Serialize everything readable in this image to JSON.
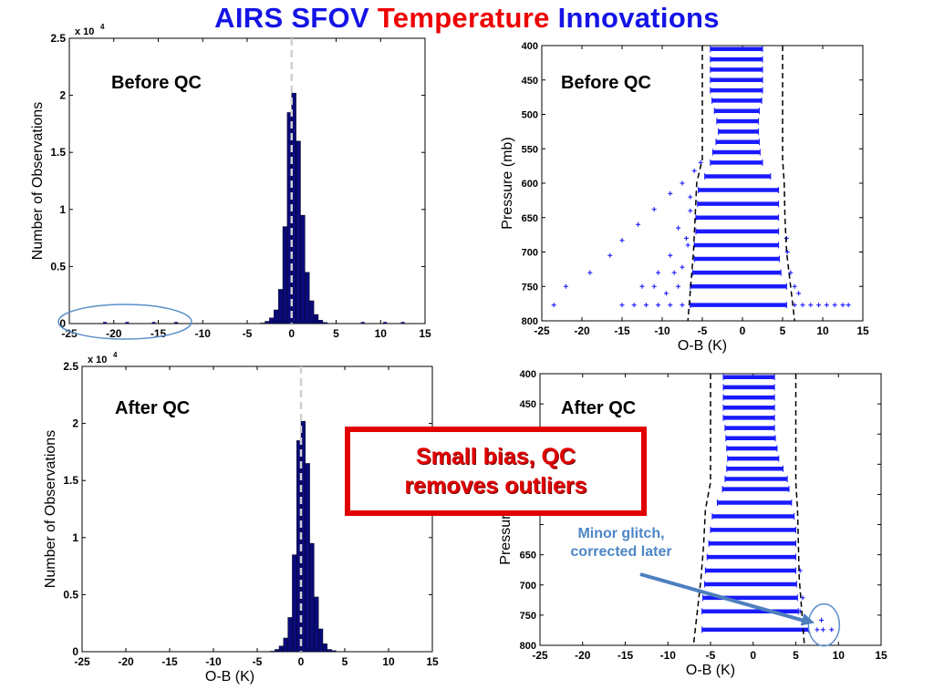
{
  "title": {
    "part1": "AIRS SFOV",
    "part2": "Temperature",
    "part3": "Innovations"
  },
  "colors": {
    "bar_fill": "#0a0a7a",
    "scatter": "#1a1aff",
    "title_blue": "#1414e6",
    "title_red": "#ee0000",
    "callout_red": "#e00000",
    "annotation_blue": "#4d86c6"
  },
  "callout": {
    "line1": "Small bias, QC",
    "line2": "removes outliers"
  },
  "annotation": {
    "line1": "Minor glitch,",
    "line2": "corrected later"
  },
  "chart_data": [
    {
      "type": "bar",
      "panel_label": "Before QC",
      "ylabel": "Number of Observations",
      "xlabel": "",
      "y_multiplier_label": "x 10",
      "y_multiplier_exp": "4",
      "xlim": [
        -25,
        15
      ],
      "ylim": [
        0,
        2.5
      ],
      "xticks": [
        "-25",
        "-20",
        "-15",
        "-10",
        "-5",
        "0",
        "5",
        "10",
        "15"
      ],
      "yticks": [
        "0",
        "0.5",
        "1",
        "1.5",
        "2",
        "2.5"
      ],
      "bin_centers": [
        -3.25,
        -2.75,
        -2.25,
        -1.75,
        -1.25,
        -0.75,
        -0.25,
        0.25,
        0.75,
        1.25,
        1.75,
        2.25,
        2.75,
        3.25,
        3.75
      ],
      "values": [
        0.005,
        0.02,
        0.05,
        0.12,
        0.3,
        0.85,
        1.85,
        2.02,
        1.6,
        0.95,
        0.45,
        0.2,
        0.08,
        0.03,
        0.01
      ],
      "grid": false
    },
    {
      "type": "scatter",
      "panel_label": "Before QC",
      "ylabel": "Pressure (mb)",
      "xlabel": "O-B (K)",
      "xlim": [
        -25,
        15
      ],
      "ylim": [
        800,
        400
      ],
      "xticks": [
        "-25",
        "-20",
        "-15",
        "-10",
        "-5",
        "0",
        "5",
        "10",
        "15"
      ],
      "yticks": [
        "400",
        "450",
        "500",
        "550",
        "600",
        "650",
        "700",
        "750",
        "800"
      ],
      "levels": [
        405,
        420,
        435,
        450,
        465,
        480,
        495,
        510,
        525,
        540,
        555,
        570,
        590,
        610,
        630,
        650,
        670,
        690,
        710,
        730,
        750,
        777
      ],
      "core_left": [
        -4.0,
        -4.0,
        -4.0,
        -4.0,
        -4.0,
        -3.8,
        -3.5,
        -3.2,
        -3.0,
        -3.3,
        -3.7,
        -4.0,
        -4.7,
        -5.5,
        -5.6,
        -5.8,
        -5.8,
        -6.0,
        -6.0,
        -6.2,
        -6.5,
        -6.5
      ],
      "core_right": [
        2.5,
        2.5,
        2.5,
        2.5,
        2.5,
        2.4,
        2.1,
        2.0,
        2.0,
        2.1,
        2.2,
        2.5,
        3.5,
        4.5,
        4.5,
        4.5,
        4.5,
        4.5,
        4.6,
        4.8,
        5.5,
        5.5
      ],
      "outliers": [
        [
          -23.5,
          777
        ],
        [
          -22,
          750
        ],
        [
          -19,
          730
        ],
        [
          -16.5,
          705
        ],
        [
          -15,
          683
        ],
        [
          -13,
          660
        ],
        [
          -11,
          638
        ],
        [
          -9,
          615
        ],
        [
          -7.5,
          600
        ],
        [
          -6,
          582
        ],
        [
          -5.2,
          570
        ],
        [
          -9.5,
          760
        ],
        [
          -8,
          750
        ],
        [
          -9,
          705
        ],
        [
          -7.5,
          722
        ],
        [
          -7,
          680
        ],
        [
          -8,
          665
        ],
        [
          -6.8,
          690
        ],
        [
          -6.5,
          640
        ],
        [
          -6.5,
          620
        ],
        [
          -15,
          777
        ],
        [
          -13.5,
          777
        ],
        [
          -12,
          777
        ],
        [
          -10.5,
          777
        ],
        [
          -9,
          777
        ],
        [
          -7.5,
          777
        ],
        [
          -12.5,
          750
        ],
        [
          -11,
          750
        ],
        [
          -10.5,
          730
        ],
        [
          -8.5,
          730
        ],
        [
          6.5,
          750
        ],
        [
          7,
          760
        ],
        [
          6.5,
          777
        ],
        [
          7.5,
          777
        ],
        [
          8.5,
          777
        ],
        [
          9.5,
          777
        ],
        [
          10.5,
          777
        ],
        [
          11.5,
          777
        ],
        [
          12.5,
          777
        ],
        [
          13.2,
          777
        ],
        [
          6,
          730
        ],
        [
          5.6,
          700
        ],
        [
          5.5,
          680
        ]
      ],
      "envelope_left": [
        [
          -5.0,
          400
        ],
        [
          -5.0,
          565
        ],
        [
          -5.7,
          600
        ],
        [
          -5.9,
          650
        ],
        [
          -6.1,
          700
        ],
        [
          -6.8,
          800
        ]
      ],
      "envelope_right": [
        [
          5.0,
          400
        ],
        [
          5.0,
          565
        ],
        [
          5.2,
          600
        ],
        [
          5.3,
          650
        ],
        [
          5.5,
          700
        ],
        [
          6.5,
          800
        ]
      ]
    },
    {
      "type": "bar",
      "panel_label": "After QC",
      "ylabel": "Number of Observations",
      "xlabel": "O-B (K)",
      "y_multiplier_label": "x 10",
      "y_multiplier_exp": "4",
      "xlim": [
        -25,
        15
      ],
      "ylim": [
        0,
        2.5
      ],
      "xticks": [
        "-25",
        "-20",
        "-15",
        "-10",
        "-5",
        "0",
        "5",
        "10",
        "15"
      ],
      "yticks": [
        "0",
        "0.5",
        "1",
        "1.5",
        "2",
        "2.5"
      ],
      "bin_centers": [
        -3.25,
        -2.75,
        -2.25,
        -1.75,
        -1.25,
        -0.75,
        -0.25,
        0.25,
        0.75,
        1.25,
        1.75,
        2.25,
        2.75,
        3.25,
        3.75
      ],
      "values": [
        0.005,
        0.02,
        0.05,
        0.12,
        0.3,
        0.85,
        1.85,
        2.02,
        1.65,
        0.95,
        0.48,
        0.2,
        0.07,
        0.02,
        0.01
      ],
      "grid": false
    },
    {
      "type": "scatter",
      "panel_label": "After QC",
      "ylabel": "Pressure (mb)",
      "xlabel": "O-B (K)",
      "xlim": [
        -25,
        15
      ],
      "ylim": [
        800,
        400
      ],
      "xticks": [
        "-25",
        "-20",
        "-15",
        "-10",
        "-5",
        "0",
        "5",
        "10",
        "15"
      ],
      "yticks": [
        "400",
        "450",
        "",
        "",
        "",
        "",
        "650",
        "700",
        "750",
        "800"
      ],
      "yticks_shown": [
        "400",
        "450",
        "650",
        "700",
        "750",
        "800"
      ],
      "levels": [
        405,
        420,
        435,
        450,
        465,
        480,
        495,
        510,
        525,
        540,
        555,
        570,
        590,
        610,
        630,
        650,
        670,
        690,
        710,
        730,
        750,
        777
      ],
      "core_left": [
        -3.5,
        -3.5,
        -3.5,
        -3.5,
        -3.5,
        -3.3,
        -3.2,
        -3.1,
        -3.0,
        -3.1,
        -3.3,
        -3.6,
        -4.2,
        -4.8,
        -5.0,
        -5.2,
        -5.4,
        -5.6,
        -5.7,
        -5.9,
        -6.0,
        -6.0
      ],
      "core_right": [
        2.5,
        2.5,
        2.5,
        2.5,
        2.5,
        2.5,
        2.6,
        2.8,
        3.0,
        3.5,
        4.0,
        4.2,
        4.5,
        4.8,
        5.0,
        5.0,
        5.0,
        5.0,
        5.1,
        5.2,
        5.3,
        6.5
      ],
      "outliers": [
        [
          7.5,
          777
        ],
        [
          8.2,
          777
        ],
        [
          9.2,
          777
        ],
        [
          8.0,
          763
        ],
        [
          5.5,
          750
        ],
        [
          5.8,
          730
        ],
        [
          5.5,
          690
        ]
      ],
      "envelope_left": [
        [
          -5.0,
          400
        ],
        [
          -5.0,
          560
        ],
        [
          -5.6,
          600
        ],
        [
          -5.8,
          650
        ],
        [
          -6.1,
          700
        ],
        [
          -7.0,
          800
        ]
      ],
      "envelope_right": [
        [
          5.0,
          400
        ],
        [
          5.0,
          560
        ],
        [
          5.2,
          600
        ],
        [
          5.3,
          650
        ],
        [
          5.4,
          700
        ],
        [
          6.0,
          800
        ]
      ]
    }
  ]
}
